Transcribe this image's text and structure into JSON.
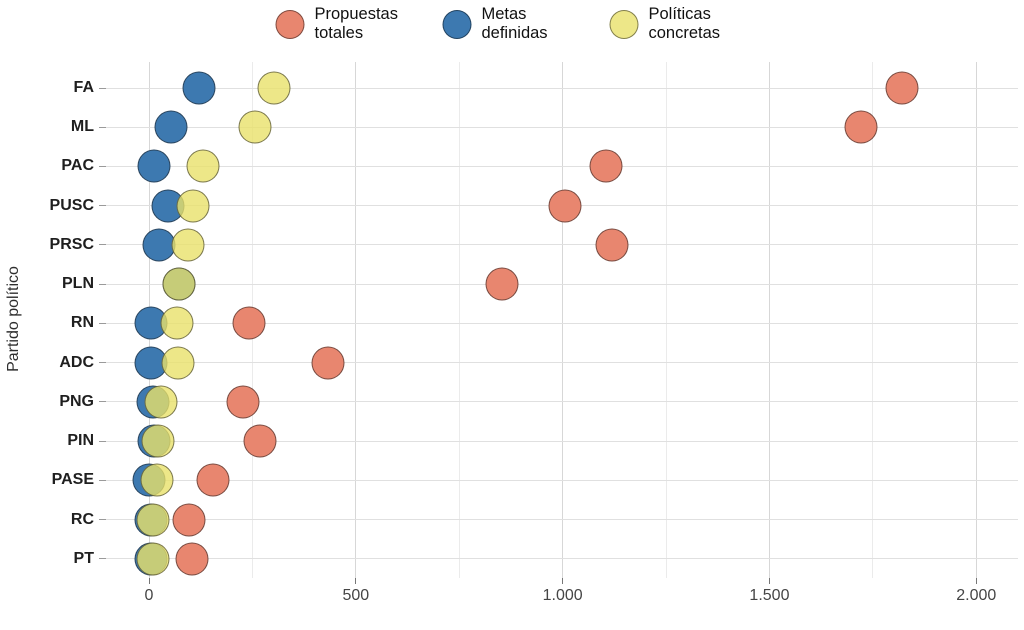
{
  "chart_data": {
    "type": "scatter",
    "subtype": "horizontal-dot-plot",
    "title": "",
    "xlabel": "",
    "ylabel": "Partido político",
    "grid": true,
    "legend_position": "top",
    "categories": [
      "FA",
      "ML",
      "PAC",
      "PUSC",
      "PRSC",
      "PLN",
      "RN",
      "ADC",
      "PNG",
      "PIN",
      "PASE",
      "RC",
      "PT"
    ],
    "series": [
      {
        "name": "Propuestas totales",
        "color": "#E8866F",
        "values": [
          1820,
          1721,
          1105,
          1006,
          1120,
          853,
          242,
          433,
          228,
          268,
          154,
          97,
          103
        ]
      },
      {
        "name": "Metas definidas",
        "color": "#3D79B0",
        "values": [
          122,
          52,
          12,
          45,
          25,
          72,
          6,
          4,
          10,
          12,
          0,
          5,
          6
        ]
      },
      {
        "name": "Políticas concretas",
        "color": "#E8E16A",
        "values": [
          302,
          256,
          130,
          106,
          95,
          72,
          68,
          70,
          28,
          21,
          19,
          10,
          10
        ]
      }
    ],
    "x_axis": {
      "xlim": [
        -105,
        2100
      ],
      "major_ticks": [
        0,
        500,
        1000,
        1500,
        2000
      ],
      "tick_labels": [
        "0",
        "500",
        "1.000",
        "1.500",
        "2.000"
      ],
      "minor_step": 250
    },
    "point_border_color": "#2a2a2a",
    "overlap_blend_color": "#B5C278"
  }
}
